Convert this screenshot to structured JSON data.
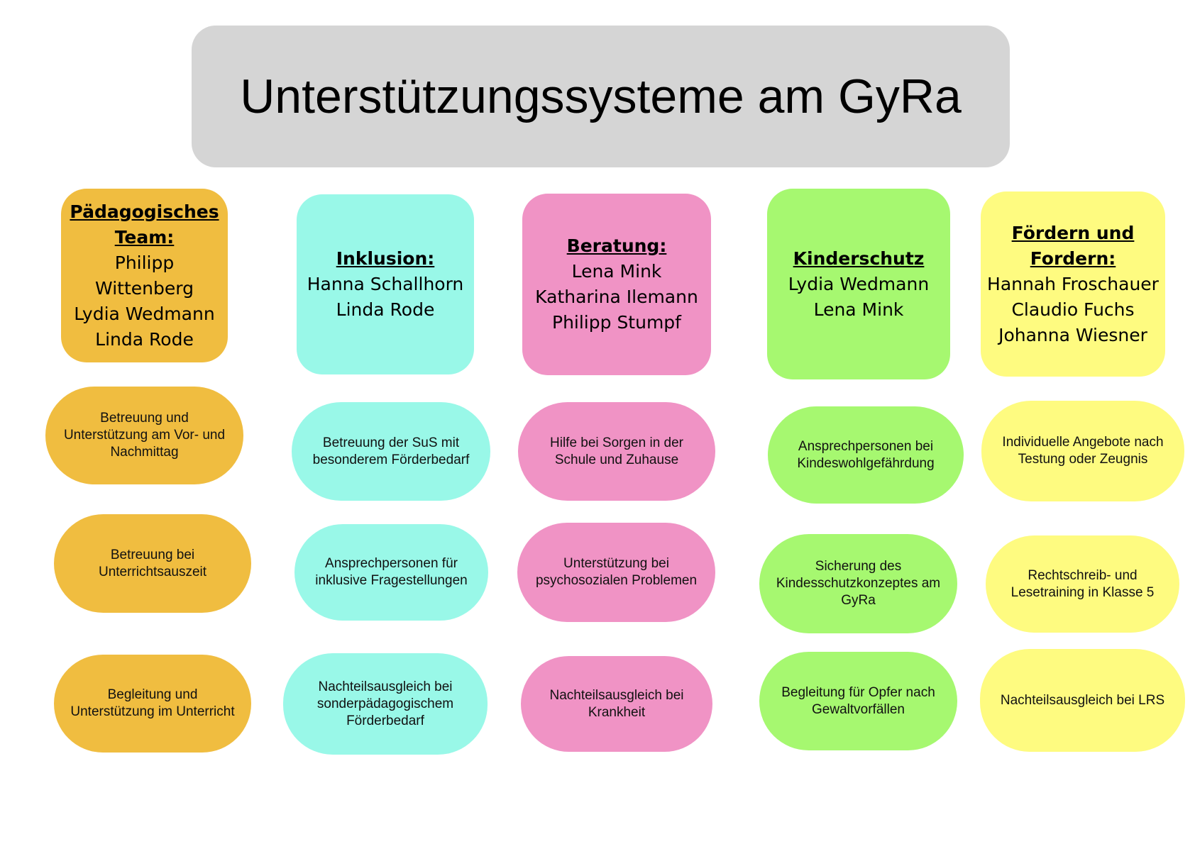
{
  "title": "Unterstützungssysteme am GyRa",
  "colors": {
    "title_bg": "#d5d5d5",
    "paedagogisch": "#f0bd40",
    "inklusion": "#99f8e8",
    "beratung": "#f093c5",
    "kinderschutz": "#a6f870",
    "foerdern": "#fefb80"
  },
  "columns": [
    {
      "heading": "Pädagogisches Team:",
      "names": [
        "Philipp",
        "Wittenberg",
        "Lydia Wedmann",
        "Linda Rode"
      ],
      "items": [
        "Betreuung und Unterstützung am Vor- und Nachmittag",
        "Betreuung bei Unterrichtsauszeit",
        "Begleitung und Unterstützung im Unterricht"
      ]
    },
    {
      "heading": "Inklusion:",
      "names": [
        "Hanna Schallhorn",
        "Linda Rode"
      ],
      "items": [
        "Betreuung der SuS mit besonderem Förderbedarf",
        "Ansprechpersonen für inklusive Fragestellungen",
        "Nachteilsausgleich bei sonderpädagogischem Förderbedarf"
      ]
    },
    {
      "heading": "Beratung:",
      "names": [
        "Lena Mink",
        "Katharina  Ilemann",
        "Philipp Stumpf"
      ],
      "items": [
        "Hilfe bei Sorgen in der Schule und Zuhause",
        "Unterstützung bei psychosozialen Problemen",
        "Nachteilsausgleich bei Krankheit"
      ]
    },
    {
      "heading": "Kinderschutz",
      "names": [
        "Lydia Wedmann",
        "Lena Mink"
      ],
      "items": [
        "Ansprechpersonen bei Kindeswohlgefährdung",
        "Sicherung des Kindesschutzkonzeptes am GyRa",
        "Begleitung für Opfer nach Gewaltvorfällen"
      ]
    },
    {
      "heading": "Fördern und Fordern:",
      "names": [
        "Hannah Froschauer",
        "Claudio Fuchs",
        "Johanna Wiesner"
      ],
      "items": [
        "Individuelle Angebote nach Testung oder Zeugnis",
        "Rechtschreib- und Lesetraining in Klasse 5",
        "Nachteilsausgleich bei LRS"
      ]
    }
  ]
}
